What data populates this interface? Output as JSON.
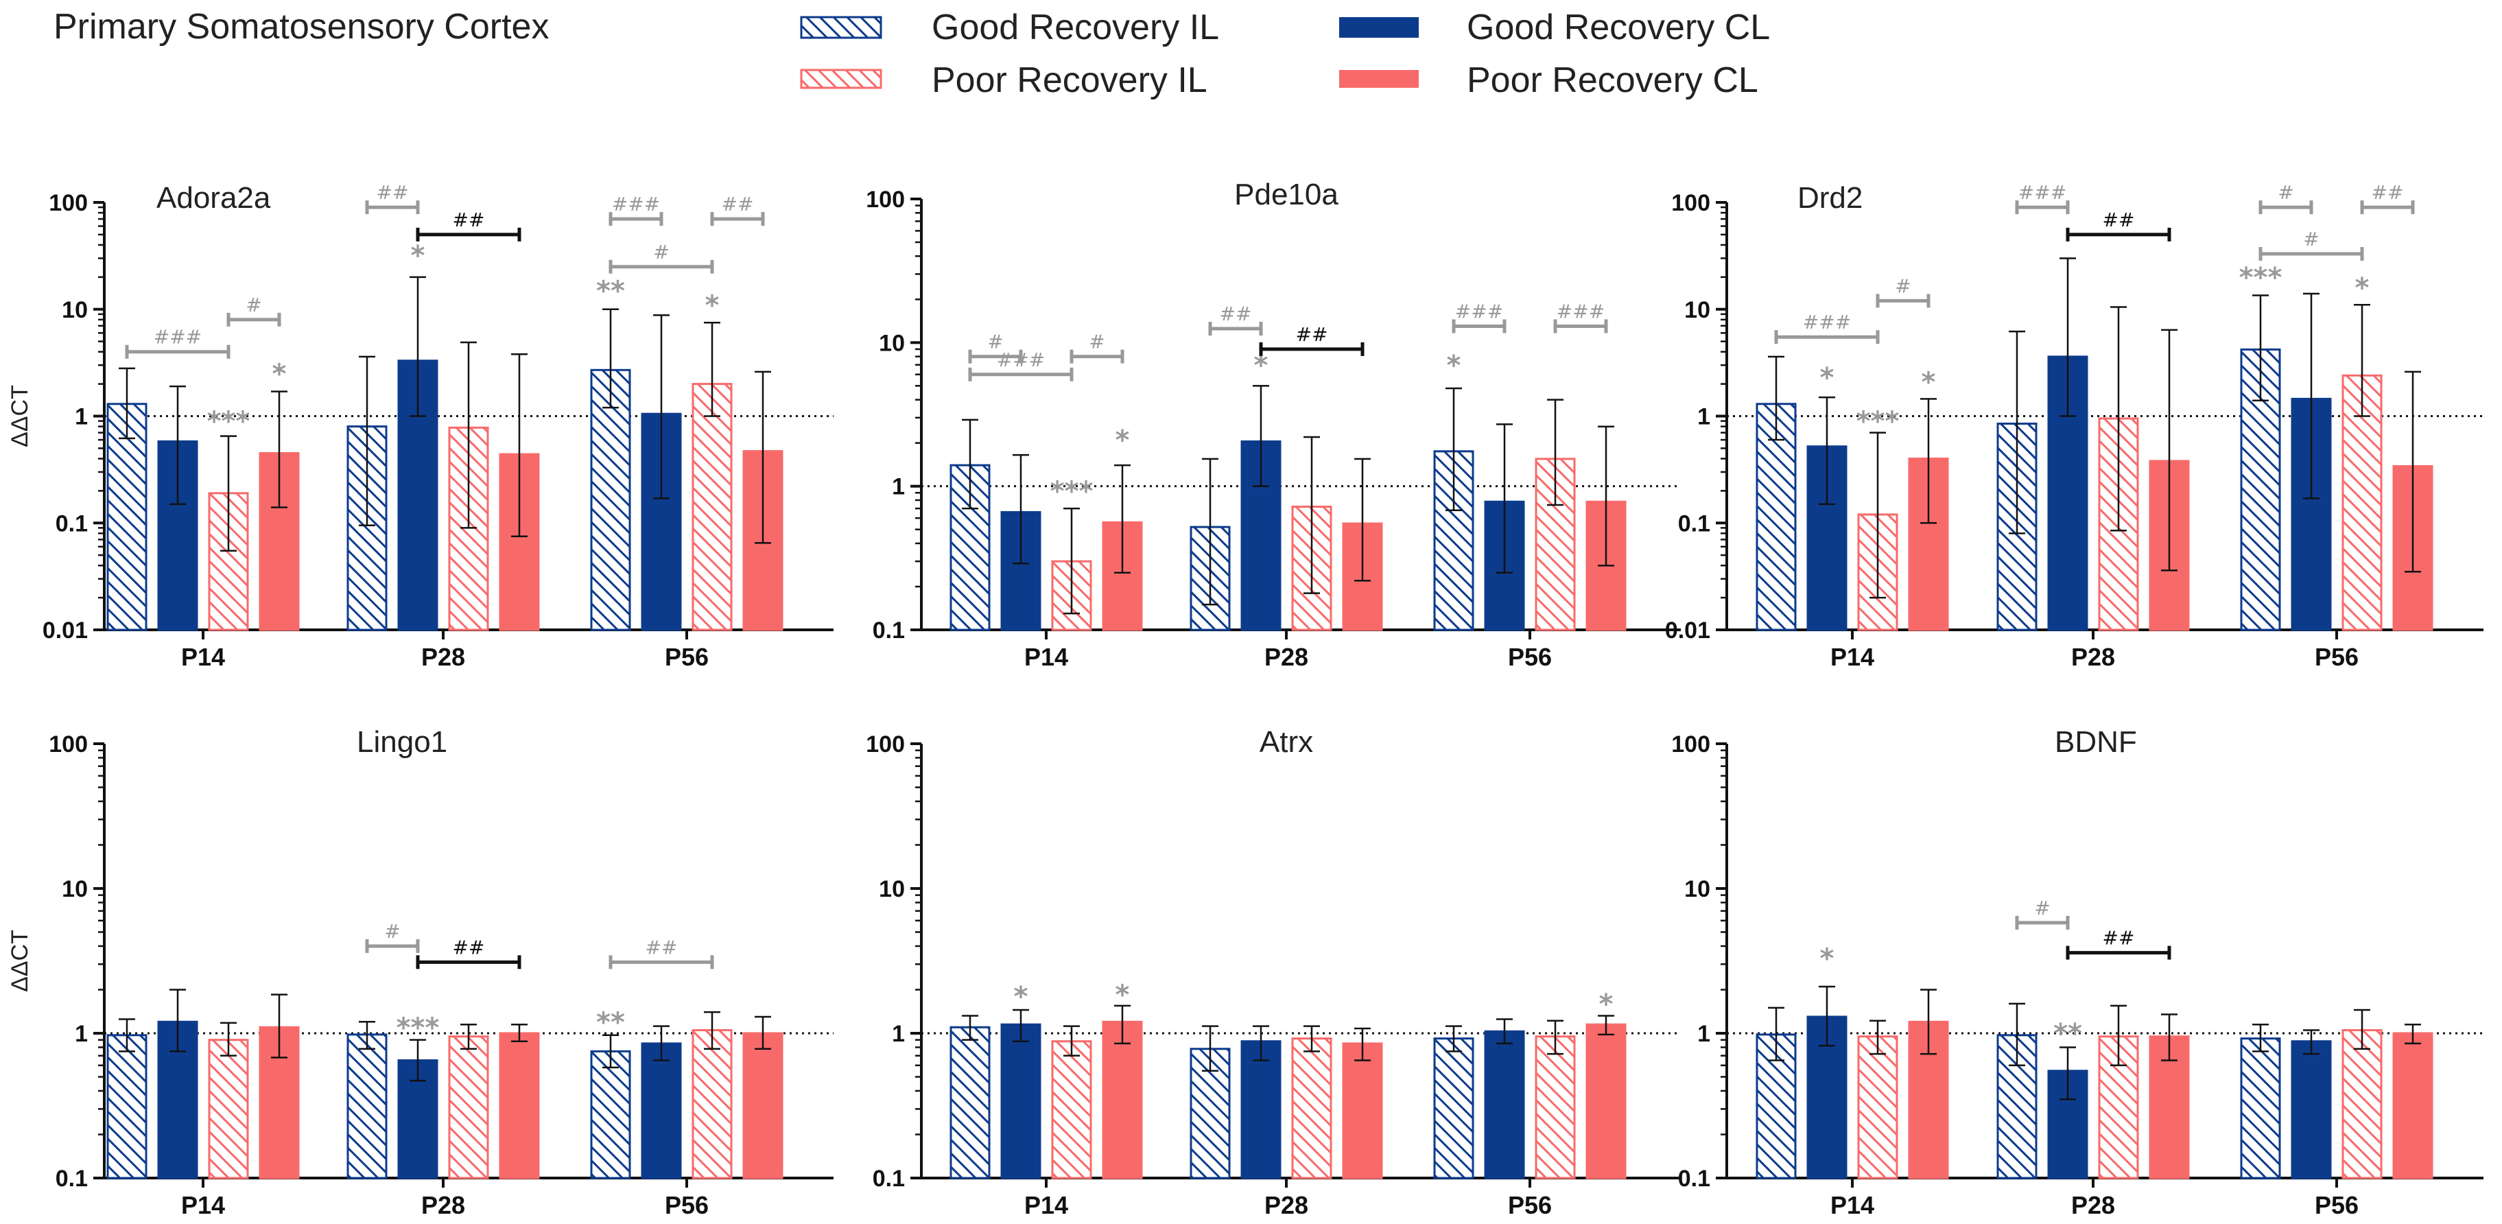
{
  "figure_title": "Primary Somatosensory  Cortex",
  "legend": [
    {
      "key": "gil",
      "label": "Good Recovery IL"
    },
    {
      "key": "gcl",
      "label": "Good Recovery CL"
    },
    {
      "key": "pil",
      "label": "Poor Recovery IL"
    },
    {
      "key": "pcl",
      "label": "Poor Recovery CL"
    }
  ],
  "colors": {
    "navy": "#0d3b8c",
    "salmon": "#f86a6a",
    "gray": "#999999",
    "black": "#111111"
  },
  "chart_data": [
    {
      "type": "bar",
      "title": "Adora2a",
      "ylabel": "ΔΔCT",
      "yscale": "log",
      "ylim": [
        0.01,
        100
      ],
      "yticks": [
        "0.01",
        "0.1",
        "1",
        "10",
        "100"
      ],
      "categories": [
        "P14",
        "P28",
        "P56"
      ],
      "series": [
        {
          "name": "Good Recovery IL",
          "values": [
            1.3,
            0.8,
            2.7
          ],
          "err_low": [
            0.62,
            0.095,
            1.2
          ],
          "err_high": [
            2.8,
            3.6,
            10
          ]
        },
        {
          "name": "Good Recovery CL",
          "values": [
            0.58,
            3.3,
            1.05
          ],
          "err_low": [
            0.15,
            1.0,
            0.17
          ],
          "err_high": [
            1.9,
            20,
            8.8
          ]
        },
        {
          "name": "Poor Recovery IL",
          "values": [
            0.19,
            0.78,
            2.0
          ],
          "err_low": [
            0.055,
            0.09,
            1.0
          ],
          "err_high": [
            0.65,
            4.9,
            7.5
          ]
        },
        {
          "name": "Poor Recovery CL",
          "values": [
            0.45,
            0.44,
            0.47
          ],
          "err_low": [
            0.14,
            0.075,
            0.065
          ],
          "err_high": [
            1.7,
            3.8,
            2.6
          ]
        }
      ],
      "stars": [
        {
          "group": 0,
          "bar": 2,
          "text": "***",
          "at": 0.9
        },
        {
          "group": 0,
          "bar": 3,
          "text": "*",
          "at": 2.5
        },
        {
          "group": 1,
          "bar": 1,
          "text": "*",
          "at": 32
        },
        {
          "group": 2,
          "bar": 0,
          "text": "**",
          "at": 15
        },
        {
          "group": 2,
          "bar": 2,
          "text": "*",
          "at": 11
        }
      ],
      "brackets": [
        {
          "group": 0,
          "from": 0,
          "to": 2,
          "text": "###",
          "at": 4,
          "style": "gray"
        },
        {
          "group": 0,
          "from": 2,
          "to": 3,
          "text": "#",
          "at": 8,
          "style": "gray"
        },
        {
          "group": 1,
          "from": 0,
          "to": 1,
          "text": "##",
          "at": 90,
          "style": "gray"
        },
        {
          "group": 1,
          "from": 1,
          "to": 3,
          "text": "##",
          "at": 50,
          "style": "black"
        },
        {
          "group": 2,
          "from": 0,
          "to": 1,
          "text": "###",
          "at": 70,
          "style": "gray"
        },
        {
          "group": 2,
          "from": 2,
          "to": 3,
          "text": "##",
          "at": 70,
          "style": "gray"
        },
        {
          "group": 2,
          "from": 0,
          "to": 2,
          "text": "#",
          "at": 25,
          "style": "gray"
        }
      ]
    },
    {
      "type": "bar",
      "title": "Pde10a",
      "ylabel": "",
      "yscale": "log",
      "ylim": [
        0.1,
        100
      ],
      "yticks": [
        "0.1",
        "1",
        "10",
        "100"
      ],
      "categories": [
        "P14",
        "P28",
        "P56"
      ],
      "series": [
        {
          "name": "Good Recovery IL",
          "values": [
            1.4,
            0.52,
            1.75
          ],
          "err_low": [
            0.7,
            0.15,
            0.68
          ],
          "err_high": [
            2.9,
            1.55,
            4.8
          ]
        },
        {
          "name": "Good Recovery CL",
          "values": [
            0.66,
            2.05,
            0.78
          ],
          "err_low": [
            0.29,
            1.0,
            0.25
          ],
          "err_high": [
            1.65,
            5.0,
            2.7
          ]
        },
        {
          "name": "Poor Recovery IL",
          "values": [
            0.3,
            0.72,
            1.55
          ],
          "err_low": [
            0.13,
            0.18,
            0.74
          ],
          "err_high": [
            0.7,
            2.2,
            4.0
          ]
        },
        {
          "name": "Poor Recovery CL",
          "values": [
            0.56,
            0.55,
            0.78
          ],
          "err_low": [
            0.25,
            0.22,
            0.28
          ],
          "err_high": [
            1.4,
            1.55,
            2.6
          ]
        }
      ],
      "stars": [
        {
          "group": 0,
          "bar": 2,
          "text": "***",
          "at": 0.93
        },
        {
          "group": 0,
          "bar": 3,
          "text": "*",
          "at": 2.1
        },
        {
          "group": 1,
          "bar": 1,
          "text": "*",
          "at": 7.0
        },
        {
          "group": 2,
          "bar": 0,
          "text": "*",
          "at": 7.0
        }
      ],
      "brackets": [
        {
          "group": 0,
          "from": 0,
          "to": 1,
          "text": "#",
          "at": 8,
          "style": "gray"
        },
        {
          "group": 0,
          "from": 2,
          "to": 3,
          "text": "#",
          "at": 8,
          "style": "gray"
        },
        {
          "group": 0,
          "from": 0,
          "to": 2,
          "text": "###",
          "at": 6,
          "style": "gray"
        },
        {
          "group": 1,
          "from": 0,
          "to": 1,
          "text": "##",
          "at": 12.5,
          "style": "gray"
        },
        {
          "group": 1,
          "from": 1,
          "to": 3,
          "text": "##",
          "at": 9,
          "style": "black"
        },
        {
          "group": 2,
          "from": 0,
          "to": 1,
          "text": "###",
          "at": 13,
          "style": "gray"
        },
        {
          "group": 2,
          "from": 2,
          "to": 3,
          "text": "###",
          "at": 13,
          "style": "gray"
        }
      ]
    },
    {
      "type": "bar",
      "title": "Drd2",
      "ylabel": "",
      "yscale": "log",
      "ylim": [
        0.01,
        100
      ],
      "yticks": [
        "0.01",
        "0.1",
        "1",
        "10",
        "100"
      ],
      "categories": [
        "P14",
        "P28",
        "P56"
      ],
      "series": [
        {
          "name": "Good Recovery IL",
          "values": [
            1.3,
            0.85,
            4.2
          ],
          "err_low": [
            0.6,
            0.08,
            1.4
          ],
          "err_high": [
            3.6,
            6.2,
            13.5
          ]
        },
        {
          "name": "Good Recovery CL",
          "values": [
            0.52,
            3.6,
            1.45
          ],
          "err_low": [
            0.15,
            1.0,
            0.17
          ],
          "err_high": [
            1.5,
            30,
            14
          ]
        },
        {
          "name": "Poor Recovery IL",
          "values": [
            0.12,
            0.95,
            2.4
          ],
          "err_low": [
            0.02,
            0.085,
            1.0
          ],
          "err_high": [
            0.7,
            10.5,
            11
          ]
        },
        {
          "name": "Poor Recovery CL",
          "values": [
            0.4,
            0.38,
            0.34
          ],
          "err_low": [
            0.1,
            0.036,
            0.035
          ],
          "err_high": [
            1.45,
            6.4,
            2.6
          ]
        }
      ],
      "stars": [
        {
          "group": 0,
          "bar": 1,
          "text": "*",
          "at": 2.3
        },
        {
          "group": 0,
          "bar": 2,
          "text": "***",
          "at": 0.9
        },
        {
          "group": 0,
          "bar": 3,
          "text": "*",
          "at": 2.1
        },
        {
          "group": 2,
          "bar": 0,
          "text": "***",
          "at": 20
        },
        {
          "group": 2,
          "bar": 2,
          "text": "*",
          "at": 16
        }
      ],
      "brackets": [
        {
          "group": 0,
          "from": 0,
          "to": 2,
          "text": "###",
          "at": 5.5,
          "style": "gray"
        },
        {
          "group": 0,
          "from": 2,
          "to": 3,
          "text": "#",
          "at": 12,
          "style": "gray"
        },
        {
          "group": 1,
          "from": 0,
          "to": 1,
          "text": "###",
          "at": 90,
          "style": "gray"
        },
        {
          "group": 1,
          "from": 1,
          "to": 3,
          "text": "##",
          "at": 50,
          "style": "black"
        },
        {
          "group": 2,
          "from": 0,
          "to": 1,
          "text": "#",
          "at": 90,
          "style": "gray"
        },
        {
          "group": 2,
          "from": 2,
          "to": 3,
          "text": "##",
          "at": 90,
          "style": "gray"
        },
        {
          "group": 2,
          "from": 0,
          "to": 2,
          "text": "#",
          "at": 33,
          "style": "gray"
        }
      ]
    },
    {
      "type": "bar",
      "title": "Lingo1",
      "ylabel": "ΔΔCT",
      "yscale": "log",
      "ylim": [
        0.1,
        100
      ],
      "yticks": [
        "0.1",
        "1",
        "10",
        "100"
      ],
      "categories": [
        "P14",
        "P28",
        "P56"
      ],
      "series": [
        {
          "name": "Good Recovery IL",
          "values": [
            0.97,
            0.98,
            0.75
          ],
          "err_low": [
            0.75,
            0.78,
            0.58
          ],
          "err_high": [
            1.25,
            1.2,
            0.97
          ]
        },
        {
          "name": "Good Recovery CL",
          "values": [
            1.2,
            0.65,
            0.85
          ],
          "err_low": [
            0.75,
            0.47,
            0.65
          ],
          "err_high": [
            2.0,
            0.9,
            1.12
          ]
        },
        {
          "name": "Poor Recovery IL",
          "values": [
            0.9,
            0.95,
            1.05
          ],
          "err_low": [
            0.7,
            0.78,
            0.78
          ],
          "err_high": [
            1.18,
            1.15,
            1.4
          ]
        },
        {
          "name": "Poor Recovery CL",
          "values": [
            1.1,
            1.0,
            1.0
          ],
          "err_low": [
            0.68,
            0.88,
            0.78
          ],
          "err_high": [
            1.85,
            1.15,
            1.3
          ]
        }
      ],
      "stars": [
        {
          "group": 1,
          "bar": 1,
          "text": "***",
          "at": 1.1
        },
        {
          "group": 2,
          "bar": 0,
          "text": "**",
          "at": 1.2
        }
      ],
      "brackets": [
        {
          "group": 1,
          "from": 0,
          "to": 1,
          "text": "#",
          "at": 4,
          "style": "gray"
        },
        {
          "group": 1,
          "from": 1,
          "to": 3,
          "text": "##",
          "at": 3.1,
          "style": "black"
        },
        {
          "group": 2,
          "from": 0,
          "to": 2,
          "text": "##",
          "at": 3.1,
          "style": "gray"
        }
      ]
    },
    {
      "type": "bar",
      "title": "Atrx",
      "ylabel": "",
      "yscale": "log",
      "ylim": [
        0.1,
        100
      ],
      "yticks": [
        "0.1",
        "1",
        "10",
        "100"
      ],
      "categories": [
        "P14",
        "P28",
        "P56"
      ],
      "series": [
        {
          "name": "Good Recovery IL",
          "values": [
            1.1,
            0.78,
            0.92
          ],
          "err_low": [
            0.9,
            0.55,
            0.75
          ],
          "err_high": [
            1.32,
            1.12,
            1.12
          ]
        },
        {
          "name": "Good Recovery CL",
          "values": [
            1.15,
            0.88,
            1.03
          ],
          "err_low": [
            0.88,
            0.65,
            0.85
          ],
          "err_high": [
            1.45,
            1.12,
            1.25
          ]
        },
        {
          "name": "Poor Recovery IL",
          "values": [
            0.88,
            0.92,
            0.95
          ],
          "err_low": [
            0.7,
            0.75,
            0.72
          ],
          "err_high": [
            1.12,
            1.12,
            1.22
          ]
        },
        {
          "name": "Poor Recovery CL",
          "values": [
            1.2,
            0.85,
            1.15
          ],
          "err_low": [
            0.85,
            0.65,
            0.98
          ],
          "err_high": [
            1.55,
            1.08,
            1.32
          ]
        }
      ],
      "stars": [
        {
          "group": 0,
          "bar": 1,
          "text": "*",
          "at": 1.8
        },
        {
          "group": 0,
          "bar": 3,
          "text": "*",
          "at": 1.85
        },
        {
          "group": 2,
          "bar": 3,
          "text": "*",
          "at": 1.6
        }
      ],
      "brackets": []
    },
    {
      "type": "bar",
      "title": "BDNF",
      "ylabel": "",
      "yscale": "log",
      "ylim": [
        0.1,
        100
      ],
      "yticks": [
        "0.1",
        "1",
        "10",
        "100"
      ],
      "categories": [
        "P14",
        "P28",
        "P56"
      ],
      "series": [
        {
          "name": "Good Recovery IL",
          "values": [
            0.98,
            0.97,
            0.92
          ],
          "err_low": [
            0.65,
            0.6,
            0.75
          ],
          "err_high": [
            1.5,
            1.6,
            1.15
          ]
        },
        {
          "name": "Good Recovery CL",
          "values": [
            1.3,
            0.55,
            0.88
          ],
          "err_low": [
            0.82,
            0.35,
            0.72
          ],
          "err_high": [
            2.1,
            0.8,
            1.05
          ]
        },
        {
          "name": "Poor Recovery IL",
          "values": [
            0.95,
            0.95,
            1.05
          ],
          "err_low": [
            0.72,
            0.6,
            0.78
          ],
          "err_high": [
            1.22,
            1.55,
            1.45
          ]
        },
        {
          "name": "Poor Recovery CL",
          "values": [
            1.2,
            0.95,
            1.0
          ],
          "err_low": [
            0.72,
            0.65,
            0.85
          ],
          "err_high": [
            2.0,
            1.35,
            1.15
          ]
        }
      ],
      "stars": [
        {
          "group": 0,
          "bar": 1,
          "text": "*",
          "at": 3.3
        },
        {
          "group": 1,
          "bar": 1,
          "text": "**",
          "at": 1.0
        }
      ],
      "brackets": [
        {
          "group": 1,
          "from": 0,
          "to": 1,
          "text": "#",
          "at": 5.8,
          "style": "gray"
        },
        {
          "group": 1,
          "from": 1,
          "to": 3,
          "text": "##",
          "at": 3.6,
          "style": "black"
        }
      ]
    }
  ]
}
